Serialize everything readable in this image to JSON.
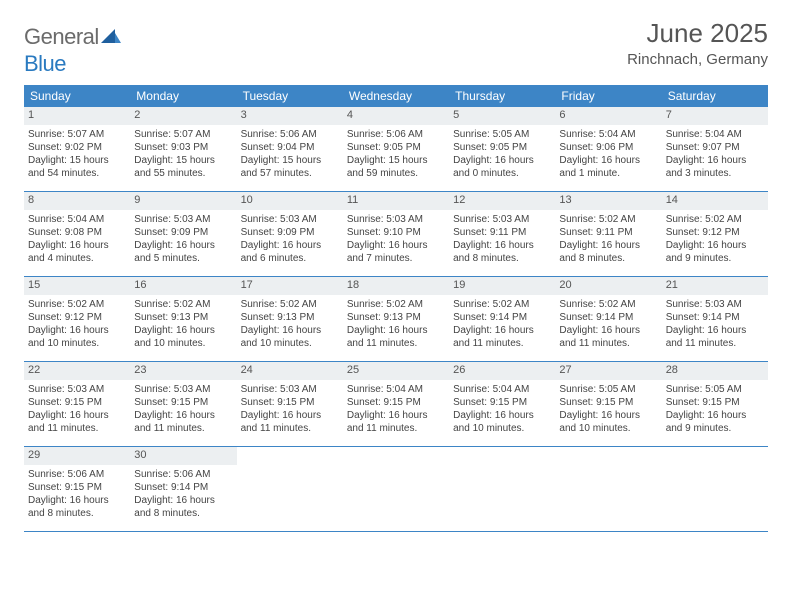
{
  "logo": {
    "word1": "General",
    "word2": "Blue"
  },
  "title": "June 2025",
  "subtitle": "Rinchnach, Germany",
  "colors": {
    "header_bar": "#3d85c6",
    "week_divider": "#3d85c6",
    "daynum_bg": "#eceff1",
    "logo_gray": "#6b6b6b",
    "logo_blue": "#2a7ac0"
  },
  "weekdays": [
    "Sunday",
    "Monday",
    "Tuesday",
    "Wednesday",
    "Thursday",
    "Friday",
    "Saturday"
  ],
  "weeks": [
    [
      {
        "n": "1",
        "sr": "5:07 AM",
        "ss": "9:02 PM",
        "dl": "15 hours and 54 minutes."
      },
      {
        "n": "2",
        "sr": "5:07 AM",
        "ss": "9:03 PM",
        "dl": "15 hours and 55 minutes."
      },
      {
        "n": "3",
        "sr": "5:06 AM",
        "ss": "9:04 PM",
        "dl": "15 hours and 57 minutes."
      },
      {
        "n": "4",
        "sr": "5:06 AM",
        "ss": "9:05 PM",
        "dl": "15 hours and 59 minutes."
      },
      {
        "n": "5",
        "sr": "5:05 AM",
        "ss": "9:05 PM",
        "dl": "16 hours and 0 minutes."
      },
      {
        "n": "6",
        "sr": "5:04 AM",
        "ss": "9:06 PM",
        "dl": "16 hours and 1 minute."
      },
      {
        "n": "7",
        "sr": "5:04 AM",
        "ss": "9:07 PM",
        "dl": "16 hours and 3 minutes."
      }
    ],
    [
      {
        "n": "8",
        "sr": "5:04 AM",
        "ss": "9:08 PM",
        "dl": "16 hours and 4 minutes."
      },
      {
        "n": "9",
        "sr": "5:03 AM",
        "ss": "9:09 PM",
        "dl": "16 hours and 5 minutes."
      },
      {
        "n": "10",
        "sr": "5:03 AM",
        "ss": "9:09 PM",
        "dl": "16 hours and 6 minutes."
      },
      {
        "n": "11",
        "sr": "5:03 AM",
        "ss": "9:10 PM",
        "dl": "16 hours and 7 minutes."
      },
      {
        "n": "12",
        "sr": "5:03 AM",
        "ss": "9:11 PM",
        "dl": "16 hours and 8 minutes."
      },
      {
        "n": "13",
        "sr": "5:02 AM",
        "ss": "9:11 PM",
        "dl": "16 hours and 8 minutes."
      },
      {
        "n": "14",
        "sr": "5:02 AM",
        "ss": "9:12 PM",
        "dl": "16 hours and 9 minutes."
      }
    ],
    [
      {
        "n": "15",
        "sr": "5:02 AM",
        "ss": "9:12 PM",
        "dl": "16 hours and 10 minutes."
      },
      {
        "n": "16",
        "sr": "5:02 AM",
        "ss": "9:13 PM",
        "dl": "16 hours and 10 minutes."
      },
      {
        "n": "17",
        "sr": "5:02 AM",
        "ss": "9:13 PM",
        "dl": "16 hours and 10 minutes."
      },
      {
        "n": "18",
        "sr": "5:02 AM",
        "ss": "9:13 PM",
        "dl": "16 hours and 11 minutes."
      },
      {
        "n": "19",
        "sr": "5:02 AM",
        "ss": "9:14 PM",
        "dl": "16 hours and 11 minutes."
      },
      {
        "n": "20",
        "sr": "5:02 AM",
        "ss": "9:14 PM",
        "dl": "16 hours and 11 minutes."
      },
      {
        "n": "21",
        "sr": "5:03 AM",
        "ss": "9:14 PM",
        "dl": "16 hours and 11 minutes."
      }
    ],
    [
      {
        "n": "22",
        "sr": "5:03 AM",
        "ss": "9:15 PM",
        "dl": "16 hours and 11 minutes."
      },
      {
        "n": "23",
        "sr": "5:03 AM",
        "ss": "9:15 PM",
        "dl": "16 hours and 11 minutes."
      },
      {
        "n": "24",
        "sr": "5:03 AM",
        "ss": "9:15 PM",
        "dl": "16 hours and 11 minutes."
      },
      {
        "n": "25",
        "sr": "5:04 AM",
        "ss": "9:15 PM",
        "dl": "16 hours and 11 minutes."
      },
      {
        "n": "26",
        "sr": "5:04 AM",
        "ss": "9:15 PM",
        "dl": "16 hours and 10 minutes."
      },
      {
        "n": "27",
        "sr": "5:05 AM",
        "ss": "9:15 PM",
        "dl": "16 hours and 10 minutes."
      },
      {
        "n": "28",
        "sr": "5:05 AM",
        "ss": "9:15 PM",
        "dl": "16 hours and 9 minutes."
      }
    ],
    [
      {
        "n": "29",
        "sr": "5:06 AM",
        "ss": "9:15 PM",
        "dl": "16 hours and 8 minutes."
      },
      {
        "n": "30",
        "sr": "5:06 AM",
        "ss": "9:14 PM",
        "dl": "16 hours and 8 minutes."
      },
      null,
      null,
      null,
      null,
      null
    ]
  ],
  "labels": {
    "sunrise": "Sunrise: ",
    "sunset": "Sunset: ",
    "daylight": "Daylight: "
  }
}
